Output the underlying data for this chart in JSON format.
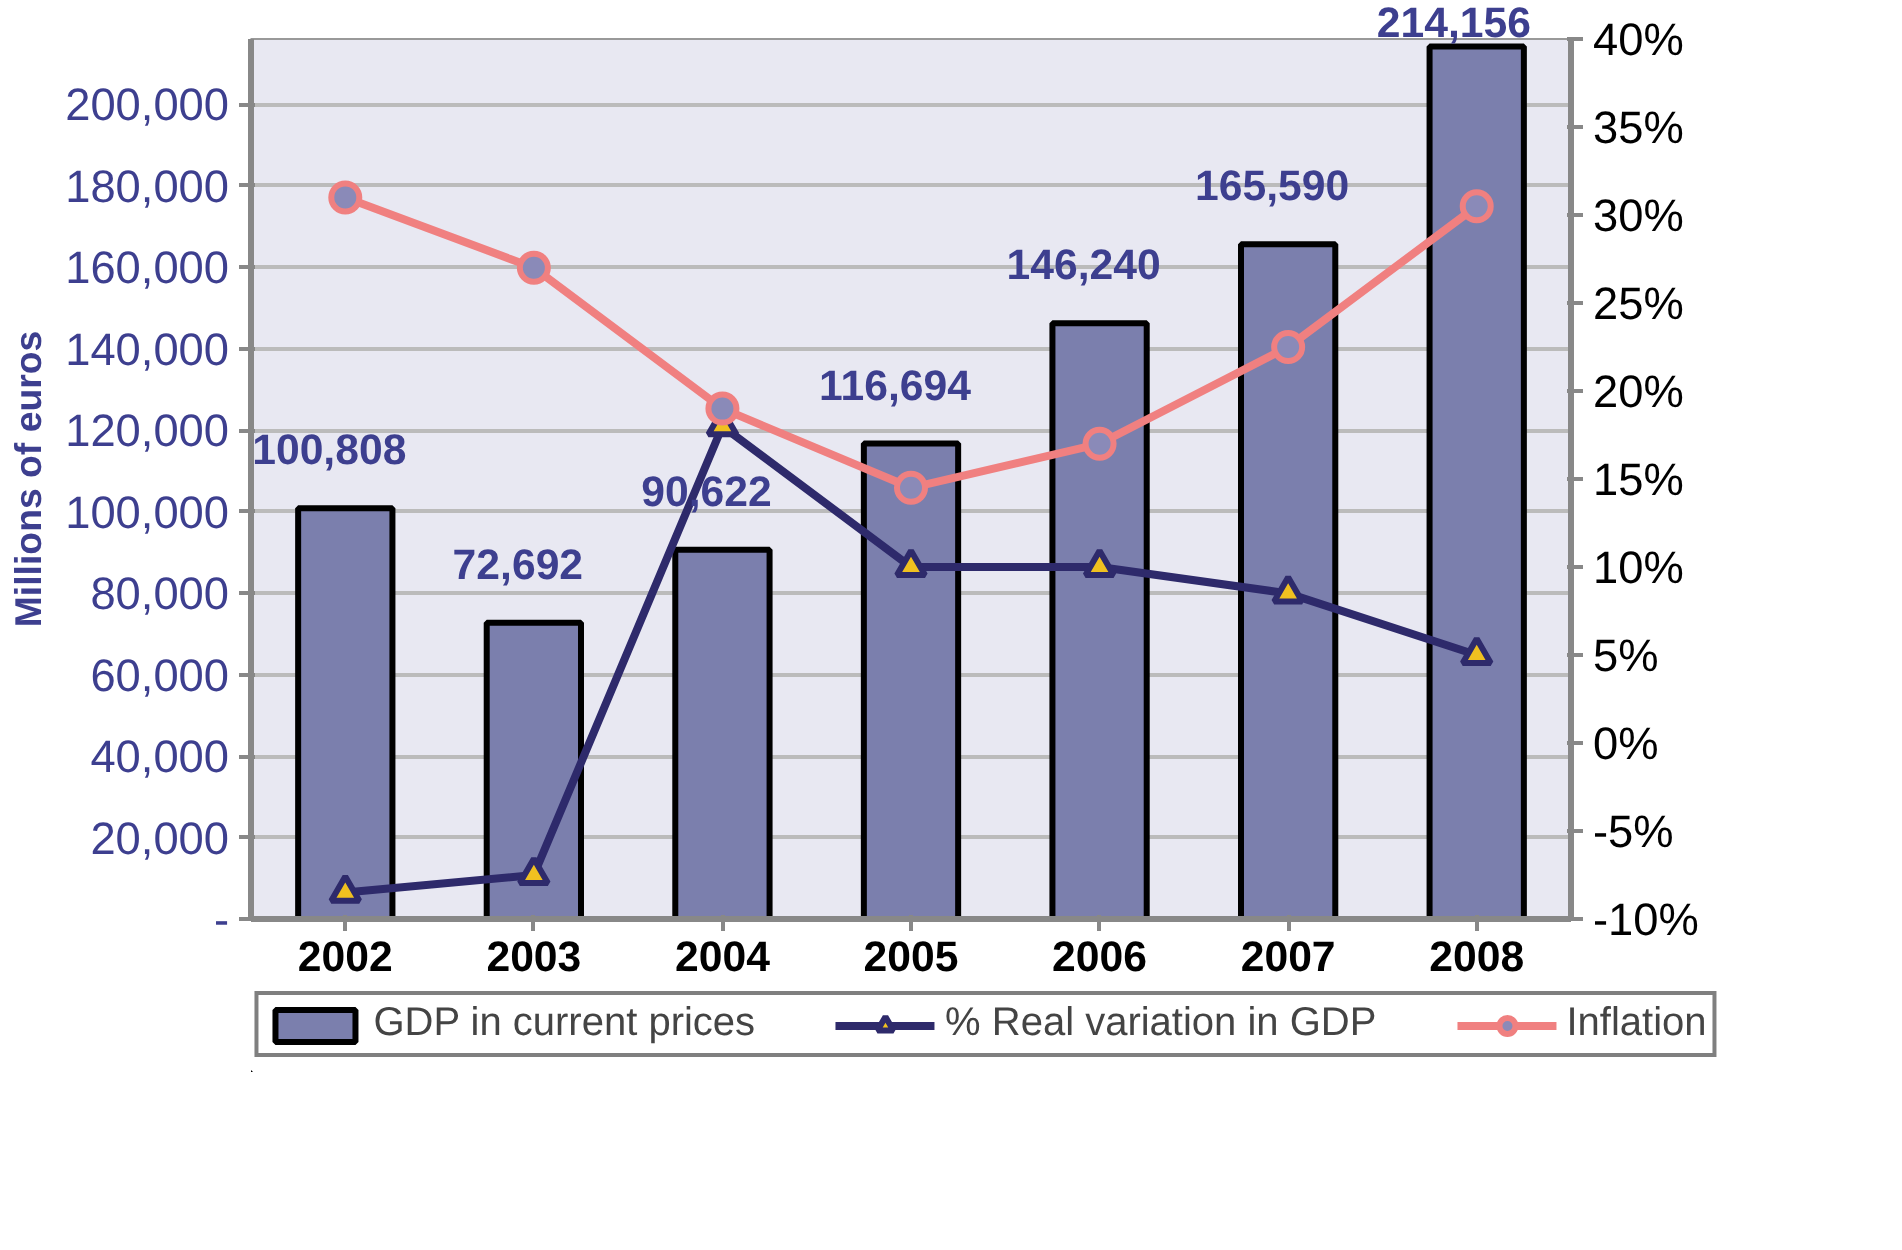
{
  "chart_data": {
    "type": "bar",
    "categories": [
      "2002",
      "2003",
      "2004",
      "2005",
      "2006",
      "2007",
      "2008"
    ],
    "ylabel": "Millions of euros",
    "ylim": [
      0,
      216000
    ],
    "yticks": [
      {
        "value": 0,
        "label": "-"
      },
      {
        "value": 20000,
        "label": "20,000"
      },
      {
        "value": 40000,
        "label": "40,000"
      },
      {
        "value": 60000,
        "label": "60,000"
      },
      {
        "value": 80000,
        "label": "80,000"
      },
      {
        "value": 100000,
        "label": "100,000"
      },
      {
        "value": 120000,
        "label": "120,000"
      },
      {
        "value": 140000,
        "label": "140,000"
      },
      {
        "value": 160000,
        "label": "160,000"
      },
      {
        "value": 180000,
        "label": "180,000"
      },
      {
        "value": 200000,
        "label": "200,000"
      }
    ],
    "y2lim": [
      -10,
      40
    ],
    "y2ticks": [
      {
        "value": -10,
        "label": "-10%"
      },
      {
        "value": -5,
        "label": "-5%"
      },
      {
        "value": 0,
        "label": "0%"
      },
      {
        "value": 5,
        "label": "5%"
      },
      {
        "value": 10,
        "label": "10%"
      },
      {
        "value": 15,
        "label": "15%"
      },
      {
        "value": 20,
        "label": "20%"
      },
      {
        "value": 25,
        "label": "25%"
      },
      {
        "value": 30,
        "label": "30%"
      },
      {
        "value": 35,
        "label": "35%"
      },
      {
        "value": 40,
        "label": "40%"
      }
    ],
    "grid": "y",
    "legend": "bottom",
    "series": [
      {
        "name": "GDP in current prices",
        "color": "#7b7fad",
        "values": [
          100808,
          72692,
          90622,
          116694,
          146240,
          165590,
          214156
        ],
        "value_labels": [
          "100,808",
          "72,692",
          "90,622",
          "116,694",
          "146,240",
          "165,590",
          "214,156"
        ]
      },
      {
        "name": "% Real variation in GDP",
        "type": "line",
        "axis": "y2",
        "marker": "triangle",
        "color": "#2e2a6b",
        "values": [
          -8.5,
          -7.5,
          18,
          10,
          10,
          8.5,
          5
        ]
      },
      {
        "name": "Inflation",
        "type": "line",
        "axis": "y2",
        "marker": "circle",
        "color": "#f08080",
        "values": [
          31,
          27,
          19,
          14.5,
          17,
          22.5,
          30.5
        ]
      }
    ]
  }
}
